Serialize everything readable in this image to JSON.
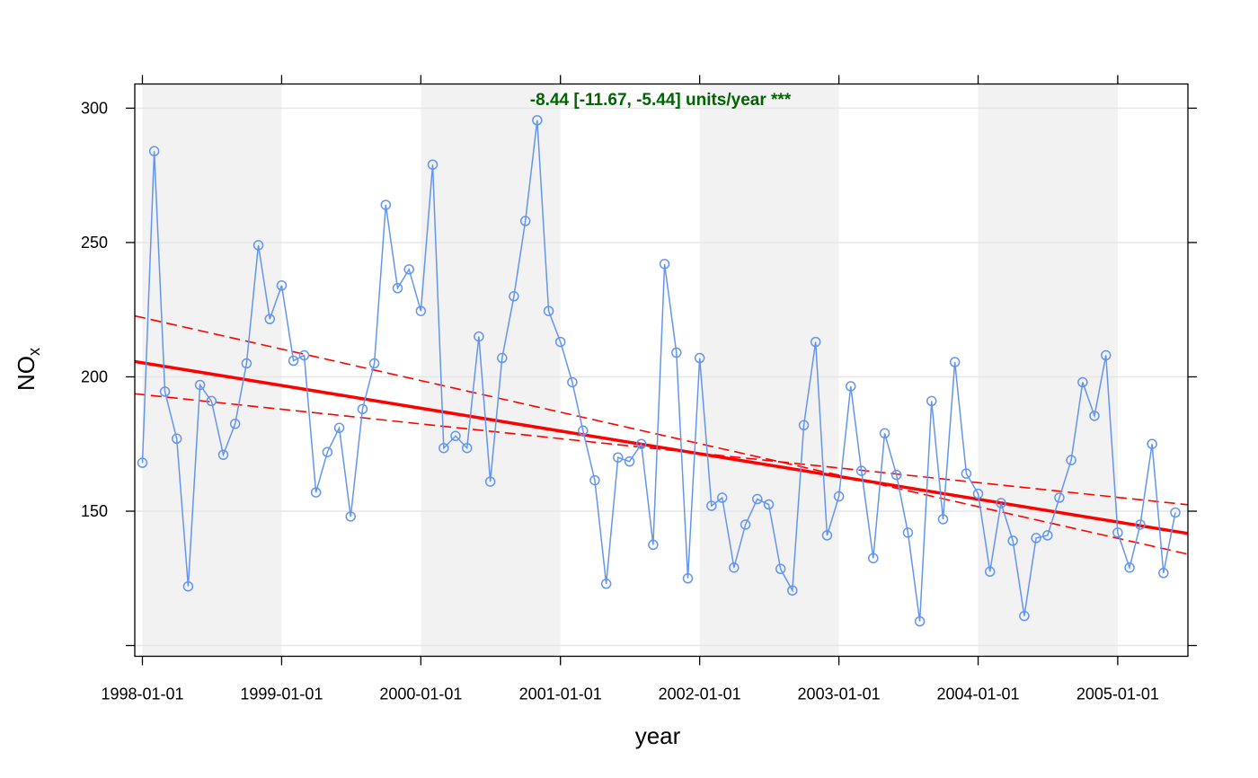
{
  "chart_data": {
    "type": "line",
    "xlabel": "year",
    "ylabel": "NO",
    "ylabel_subscript": "x",
    "annotation": "-8.44 [-11.67, -5.44] units/year ***",
    "colors": {
      "series": "#6495ED",
      "trend": "#FF0000",
      "annotation": "#006400",
      "band": "#F2F2F2",
      "grid": "#E6E6E6"
    },
    "x_ticks": [
      "1998-01-01",
      "1999-01-01",
      "2000-01-01",
      "2001-01-01",
      "2002-01-01",
      "2003-01-01",
      "2004-01-01",
      "2005-01-01"
    ],
    "y_ticks": [
      150,
      200,
      250,
      300
    ],
    "ylim": [
      96,
      309
    ],
    "xlim": [
      "1997-12-12",
      "2005-07-04"
    ],
    "grid": true,
    "shaded_years": [
      "1998",
      "2000",
      "2002",
      "2004"
    ],
    "series": [
      {
        "x": [
          "1998-01-01",
          "1998-02-01",
          "1998-03-01",
          "1998-04-01",
          "1998-05-01",
          "1998-06-01",
          "1998-07-01",
          "1998-08-01",
          "1998-09-01",
          "1998-10-01",
          "1998-11-01",
          "1998-12-01",
          "1999-01-01",
          "1999-02-01",
          "1999-03-01",
          "1999-04-01",
          "1999-05-01",
          "1999-06-01",
          "1999-07-01",
          "1999-08-01",
          "1999-09-01",
          "1999-10-01",
          "1999-11-01",
          "1999-12-01",
          "2000-01-01",
          "2000-02-01",
          "2000-03-01",
          "2000-04-01",
          "2000-05-01",
          "2000-06-01",
          "2000-07-01",
          "2000-08-01",
          "2000-09-01",
          "2000-10-01",
          "2000-11-01",
          "2000-12-01",
          "2001-01-01",
          "2001-02-01",
          "2001-03-01",
          "2001-04-01",
          "2001-05-01",
          "2001-06-01",
          "2001-07-01",
          "2001-08-01",
          "2001-09-01",
          "2001-10-01",
          "2001-11-01",
          "2001-12-01",
          "2002-01-01",
          "2002-02-01",
          "2002-03-01",
          "2002-04-01",
          "2002-05-01",
          "2002-06-01",
          "2002-07-01",
          "2002-08-01",
          "2002-09-01",
          "2002-10-01",
          "2002-11-01",
          "2002-12-01",
          "2003-01-01",
          "2003-02-01",
          "2003-03-01",
          "2003-04-01",
          "2003-05-01",
          "2003-06-01",
          "2003-07-01",
          "2003-08-01",
          "2003-09-01",
          "2003-10-01",
          "2003-11-01",
          "2003-12-01",
          "2004-01-01",
          "2004-02-01",
          "2004-03-01",
          "2004-04-01",
          "2004-05-01",
          "2004-06-01",
          "2004-07-01",
          "2004-08-01",
          "2004-09-01",
          "2004-10-01",
          "2004-11-01",
          "2004-12-01",
          "2005-01-01",
          "2005-02-01",
          "2005-03-01",
          "2005-04-01",
          "2005-05-01",
          "2005-06-01"
        ],
        "values": [
          168,
          284,
          194.5,
          177,
          122,
          197,
          191,
          171,
          182.5,
          205,
          249,
          221.5,
          234,
          206,
          208,
          157,
          172,
          181,
          148,
          188,
          205,
          264,
          233,
          240,
          224.5,
          279,
          173.5,
          178,
          173.5,
          215,
          161,
          207,
          230,
          258,
          295.5,
          224.5,
          213,
          198,
          180,
          161.5,
          123,
          170,
          168.5,
          175,
          137.5,
          242,
          209,
          125,
          207,
          152,
          155,
          129,
          145,
          154.5,
          152.5,
          128.5,
          120.5,
          182,
          213,
          141,
          155.5,
          196.5,
          165,
          132.5,
          179,
          163.5,
          142,
          109,
          191,
          147,
          205.5,
          164,
          156.5,
          127.5,
          153,
          139,
          111,
          140,
          141,
          155,
          169,
          198,
          185.5,
          208,
          142,
          129,
          145,
          175,
          127,
          149.5
        ]
      }
    ],
    "trend": {
      "start": [
        "1997-12-12",
        205.7
      ],
      "end": [
        "2005-07-04",
        141.7
      ]
    },
    "trend_upper": {
      "start": [
        "1997-12-12",
        222.7
      ],
      "end": [
        "2005-07-04",
        134.0
      ]
    },
    "trend_lower": {
      "start": [
        "1997-12-12",
        193.7
      ],
      "end": [
        "2005-07-04",
        152.4
      ]
    }
  }
}
